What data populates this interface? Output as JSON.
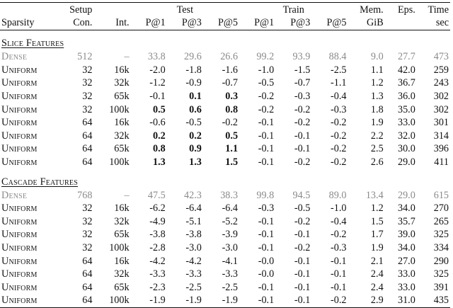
{
  "header": {
    "top": {
      "setup": "Setup",
      "test": "Test",
      "train": "Train",
      "mem": "Mem.",
      "eps": "Eps.",
      "time": "Time"
    },
    "bottom": {
      "sparsity": "Sparsity",
      "con": "Con.",
      "int": "Int.",
      "test_p1": "P@1",
      "test_p3": "P@3",
      "test_p5": "P@5",
      "train_p1": "P@1",
      "train_p3": "P@3",
      "train_p5": "P@5",
      "mem": "GiB",
      "time": "sec"
    }
  },
  "sections": [
    {
      "title": "Slice Features",
      "rows": [
        {
          "sparsity": "Dense",
          "con": "512",
          "int": "–",
          "test_p1": "33.8",
          "test_p3": "29.6",
          "test_p5": "26.6",
          "train_p1": "99.2",
          "train_p3": "93.9",
          "train_p5": "88.4",
          "mem": "9.0",
          "eps": "27.7",
          "time": "473",
          "baseline": true,
          "bold": []
        },
        {
          "sparsity": "Uniform",
          "con": "32",
          "int": "16k",
          "test_p1": "-2.0",
          "test_p3": "-1.8",
          "test_p5": "-1.6",
          "train_p1": "-1.0",
          "train_p3": "-1.5",
          "train_p5": "-2.5",
          "mem": "1.1",
          "eps": "42.0",
          "time": "259",
          "baseline": false,
          "bold": []
        },
        {
          "sparsity": "Uniform",
          "con": "32",
          "int": "32k",
          "test_p1": "-1.2",
          "test_p3": "-0.9",
          "test_p5": "-0.7",
          "train_p1": "-0.5",
          "train_p3": "-0.7",
          "train_p5": "-1.1",
          "mem": "1.2",
          "eps": "36.7",
          "time": "243",
          "baseline": false,
          "bold": []
        },
        {
          "sparsity": "Uniform",
          "con": "32",
          "int": "65k",
          "test_p1": "-0.1",
          "test_p3": "0.1",
          "test_p5": "0.3",
          "train_p1": "-0.2",
          "train_p3": "-0.3",
          "train_p5": "-0.4",
          "mem": "1.3",
          "eps": "36.0",
          "time": "302",
          "baseline": false,
          "bold": [
            "test_p3",
            "test_p5"
          ]
        },
        {
          "sparsity": "Uniform",
          "con": "32",
          "int": "100k",
          "test_p1": "0.5",
          "test_p3": "0.6",
          "test_p5": "0.8",
          "train_p1": "-0.2",
          "train_p3": "-0.2",
          "train_p5": "-0.3",
          "mem": "1.8",
          "eps": "35.0",
          "time": "302",
          "baseline": false,
          "bold": [
            "test_p1",
            "test_p3",
            "test_p5"
          ]
        },
        {
          "sparsity": "Uniform",
          "con": "64",
          "int": "16k",
          "test_p1": "-0.6",
          "test_p3": "-0.5",
          "test_p5": "-0.2",
          "train_p1": "-0.1",
          "train_p3": "-0.2",
          "train_p5": "-0.2",
          "mem": "1.9",
          "eps": "33.0",
          "time": "301",
          "baseline": false,
          "bold": []
        },
        {
          "sparsity": "Uniform",
          "con": "64",
          "int": "32k",
          "test_p1": "0.2",
          "test_p3": "0.2",
          "test_p5": "0.5",
          "train_p1": "-0.1",
          "train_p3": "-0.1",
          "train_p5": "-0.2",
          "mem": "2.2",
          "eps": "32.0",
          "time": "314",
          "baseline": false,
          "bold": [
            "test_p1",
            "test_p3",
            "test_p5"
          ]
        },
        {
          "sparsity": "Uniform",
          "con": "64",
          "int": "65k",
          "test_p1": "0.8",
          "test_p3": "0.9",
          "test_p5": "1.1",
          "train_p1": "-0.1",
          "train_p3": "-0.1",
          "train_p5": "-0.2",
          "mem": "2.5",
          "eps": "30.0",
          "time": "396",
          "baseline": false,
          "bold": [
            "test_p1",
            "test_p3",
            "test_p5"
          ]
        },
        {
          "sparsity": "Uniform",
          "con": "64",
          "int": "100k",
          "test_p1": "1.3",
          "test_p3": "1.3",
          "test_p5": "1.5",
          "train_p1": "-0.1",
          "train_p3": "-0.2",
          "train_p5": "-0.2",
          "mem": "2.6",
          "eps": "29.0",
          "time": "411",
          "baseline": false,
          "bold": [
            "test_p1",
            "test_p3",
            "test_p5"
          ]
        }
      ]
    },
    {
      "title": "Cascade Features",
      "rows": [
        {
          "sparsity": "Dense",
          "con": "768",
          "int": "–",
          "test_p1": "47.5",
          "test_p3": "42.3",
          "test_p5": "38.3",
          "train_p1": "99.8",
          "train_p3": "94.5",
          "train_p5": "89.0",
          "mem": "13.4",
          "eps": "29.0",
          "time": "615",
          "baseline": true,
          "bold": []
        },
        {
          "sparsity": "Uniform",
          "con": "32",
          "int": "16k",
          "test_p1": "-6.2",
          "test_p3": "-6.4",
          "test_p5": "-6.4",
          "train_p1": "-0.3",
          "train_p3": "-0.5",
          "train_p5": "-1.0",
          "mem": "1.2",
          "eps": "34.0",
          "time": "270",
          "baseline": false,
          "bold": []
        },
        {
          "sparsity": "Uniform",
          "con": "32",
          "int": "32k",
          "test_p1": "-4.9",
          "test_p3": "-5.1",
          "test_p5": "-5.2",
          "train_p1": "-0.1",
          "train_p3": "-0.2",
          "train_p5": "-0.4",
          "mem": "1.5",
          "eps": "35.7",
          "time": "265",
          "baseline": false,
          "bold": []
        },
        {
          "sparsity": "Uniform",
          "con": "32",
          "int": "65k",
          "test_p1": "-3.8",
          "test_p3": "-3.8",
          "test_p5": "-3.9",
          "train_p1": "-0.1",
          "train_p3": "-0.1",
          "train_p5": "-0.2",
          "mem": "1.7",
          "eps": "39.0",
          "time": "325",
          "baseline": false,
          "bold": []
        },
        {
          "sparsity": "Uniform",
          "con": "32",
          "int": "100k",
          "test_p1": "-2.8",
          "test_p3": "-3.0",
          "test_p5": "-3.0",
          "train_p1": "-0.1",
          "train_p3": "-0.2",
          "train_p5": "-0.3",
          "mem": "1.9",
          "eps": "34.0",
          "time": "334",
          "baseline": false,
          "bold": []
        },
        {
          "sparsity": "Uniform",
          "con": "64",
          "int": "16k",
          "test_p1": "-4.2",
          "test_p3": "-4.2",
          "test_p5": "-4.1",
          "train_p1": "-0.0",
          "train_p3": "-0.1",
          "train_p5": "-0.1",
          "mem": "2.1",
          "eps": "27.0",
          "time": "290",
          "baseline": false,
          "bold": []
        },
        {
          "sparsity": "Uniform",
          "con": "64",
          "int": "32k",
          "test_p1": "-3.3",
          "test_p3": "-3.3",
          "test_p5": "-3.3",
          "train_p1": "-0.0",
          "train_p3": "-0.1",
          "train_p5": "-0.1",
          "mem": "2.4",
          "eps": "33.0",
          "time": "325",
          "baseline": false,
          "bold": []
        },
        {
          "sparsity": "Uniform",
          "con": "64",
          "int": "65k",
          "test_p1": "-2.3",
          "test_p3": "-2.5",
          "test_p5": "-2.5",
          "train_p1": "-0.1",
          "train_p3": "-0.1",
          "train_p5": "-0.1",
          "mem": "2.4",
          "eps": "33.0",
          "time": "391",
          "baseline": false,
          "bold": []
        },
        {
          "sparsity": "Uniform",
          "con": "64",
          "int": "100k",
          "test_p1": "-1.9",
          "test_p3": "-1.9",
          "test_p5": "-1.9",
          "train_p1": "-0.1",
          "train_p3": "-0.1",
          "train_p5": "-0.2",
          "mem": "2.9",
          "eps": "31.0",
          "time": "435",
          "baseline": false,
          "bold": []
        }
      ]
    }
  ]
}
